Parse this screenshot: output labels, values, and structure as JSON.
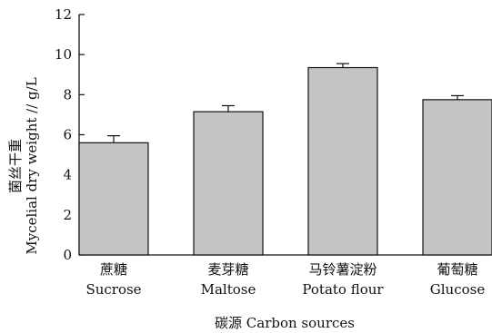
{
  "chart_data": {
    "type": "bar",
    "categories": [
      {
        "zh": "蔗糖",
        "en": "Sucrose"
      },
      {
        "zh": "麦芽糖",
        "en": "Maltose"
      },
      {
        "zh": "马铃薯淀粉",
        "en": "Potato flour"
      },
      {
        "zh": "葡萄糖",
        "en": "Glucose"
      }
    ],
    "values": [
      5.6,
      7.15,
      9.35,
      7.75
    ],
    "errors": [
      0.35,
      0.3,
      0.2,
      0.2
    ],
    "xlabel": "碳源 Carbon sources",
    "ylabel_zh": "菌丝干重",
    "ylabel_en": "Mycelial dry weight // g/L",
    "ylim": [
      0,
      12
    ],
    "yticks": [
      "0",
      "2",
      "4",
      "6",
      "8",
      "10",
      "12"
    ],
    "grid": false,
    "bar_color": "#c4c4c4",
    "bar_edge_color": "#111111"
  }
}
